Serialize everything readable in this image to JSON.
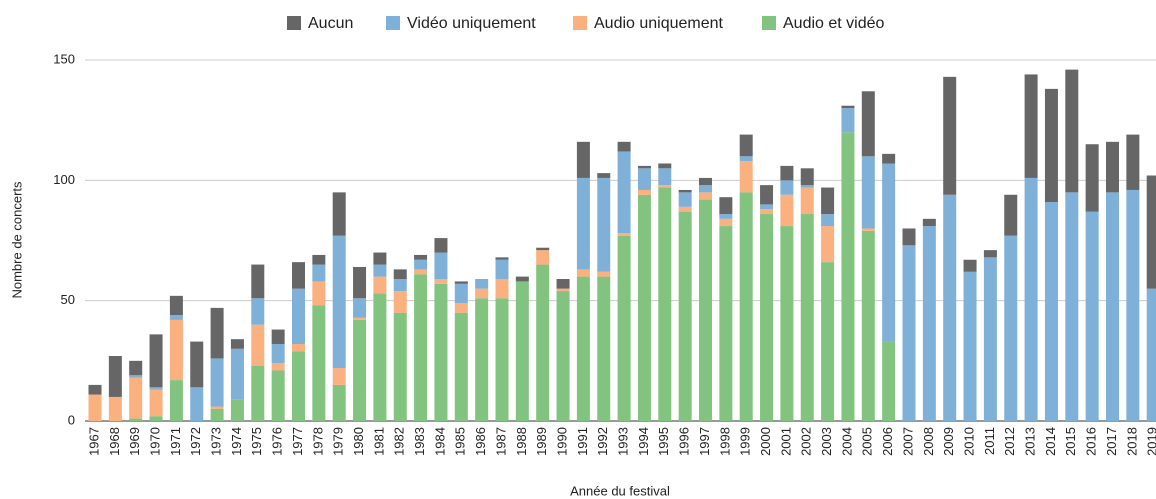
{
  "chart_data": {
    "type": "stacked_bar",
    "x_label": "Année du festival",
    "y_label": "Nombre de concerts",
    "categories": [
      "1967",
      "1968",
      "1969",
      "1970",
      "1971",
      "1972",
      "1973",
      "1974",
      "1975",
      "1976",
      "1977",
      "1978",
      "1979",
      "1980",
      "1981",
      "1982",
      "1983",
      "1984",
      "1985",
      "1986",
      "1987",
      "1988",
      "1989",
      "1990",
      "1991",
      "1992",
      "1993",
      "1994",
      "1995",
      "1996",
      "1997",
      "1998",
      "1999",
      "2000",
      "2001",
      "2002",
      "2003",
      "2004",
      "2005",
      "2006",
      "2007",
      "2008",
      "2009",
      "2010",
      "2011",
      "2012",
      "2013",
      "2014",
      "2015",
      "2016",
      "2017",
      "2018",
      "2019"
    ],
    "series": [
      {
        "name": "Audio et vidéo",
        "color": "#82c47f",
        "values": [
          0,
          0,
          1,
          2,
          17,
          0,
          5,
          9,
          23,
          21,
          29,
          48,
          15,
          42,
          53,
          45,
          61,
          57,
          45,
          51,
          51,
          58,
          65,
          54,
          60,
          60,
          77,
          94,
          97,
          87,
          92,
          81,
          95,
          86,
          81,
          86,
          66,
          120,
          79,
          33,
          0,
          0,
          0,
          0,
          0,
          0,
          0,
          0,
          0,
          0,
          0,
          0,
          0
        ]
      },
      {
        "name": "Audio uniquement",
        "color": "#fbb07f",
        "values": [
          11,
          10,
          17,
          11,
          25,
          0,
          1,
          0,
          17,
          3,
          3,
          10,
          7,
          1,
          7,
          9,
          2,
          2,
          4,
          4,
          8,
          0,
          6,
          1,
          3,
          2,
          1,
          2,
          1,
          2,
          3,
          3,
          13,
          2,
          13,
          11,
          15,
          0,
          1,
          0,
          0,
          0,
          0,
          0,
          0,
          0,
          0,
          0,
          0,
          0,
          0,
          0,
          0
        ]
      },
      {
        "name": "Vidéo uniquement",
        "color": "#7fb0d8",
        "values": [
          0,
          0,
          1,
          1,
          2,
          14,
          20,
          21,
          11,
          8,
          23,
          7,
          55,
          8,
          5,
          5,
          4,
          11,
          8,
          4,
          8,
          0,
          0,
          0,
          38,
          39,
          34,
          9,
          7,
          6,
          3,
          2,
          2,
          2,
          6,
          1,
          5,
          10,
          30,
          74,
          73,
          81,
          94,
          62,
          68,
          77,
          101,
          91,
          95,
          87,
          95,
          96,
          55
        ]
      },
      {
        "name": "Aucun",
        "color": "#666666",
        "values": [
          4,
          17,
          6,
          22,
          8,
          19,
          21,
          4,
          14,
          6,
          11,
          4,
          18,
          13,
          5,
          4,
          2,
          6,
          1,
          0,
          1,
          2,
          1,
          4,
          15,
          2,
          4,
          1,
          2,
          1,
          3,
          7,
          9,
          8,
          6,
          7,
          11,
          1,
          27,
          4,
          7,
          3,
          49,
          5,
          3,
          17,
          43,
          47,
          51,
          28,
          21,
          23,
          47
        ]
      }
    ],
    "ylim": [
      0,
      150
    ],
    "yticks": [
      0,
      50,
      100,
      150
    ],
    "grid": true,
    "legend": "top"
  }
}
